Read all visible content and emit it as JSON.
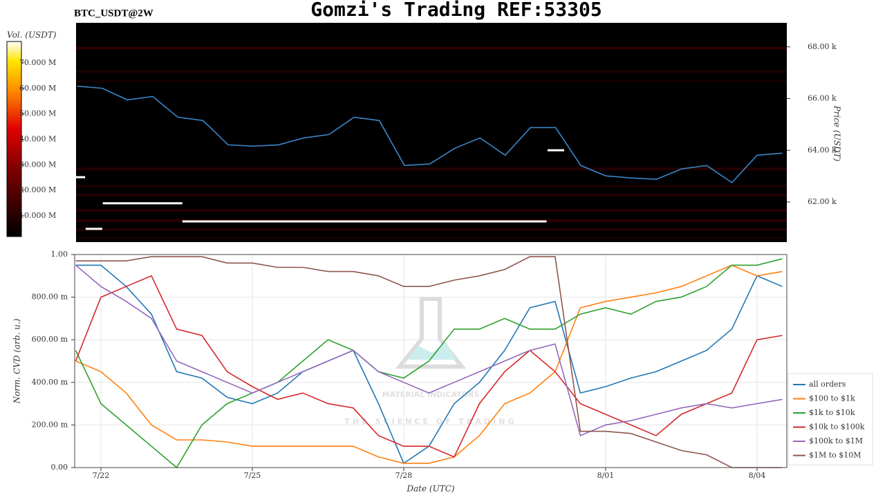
{
  "chart_data": [
    {
      "type": "line",
      "title": "Gomzi's Trading REF:53305",
      "subtitle": "BTC_USDT@2W",
      "ylabel": "Price (USDT)",
      "clabel": "Vol. (USDT)",
      "x": [
        21.5,
        22,
        22.5,
        23,
        23.5,
        24,
        24.5,
        25,
        25.5,
        26,
        26.5,
        27,
        27.5,
        28,
        28.5,
        29,
        29.5,
        30,
        30.5,
        31,
        31.5,
        32,
        32.5,
        33,
        33.5,
        34,
        34.5,
        35,
        35.5
      ],
      "xlim": [
        21.48,
        35.59
      ],
      "ylim": [
        60450,
        68930
      ],
      "yticks": [
        {
          "value": 62000,
          "label": "62.00 k"
        },
        {
          "value": 64000,
          "label": "64.00 k"
        },
        {
          "value": 66000,
          "label": "66.00 k"
        },
        {
          "value": 68000,
          "label": "68.00 k"
        }
      ],
      "clim": [
        1850000,
        78400000
      ],
      "cticks": [
        {
          "value": 10000000,
          "label": "10.000 M"
        },
        {
          "value": 20000000,
          "label": "20.000 M"
        },
        {
          "value": 30000000,
          "label": "30.000 M"
        },
        {
          "value": 40000000,
          "label": "40.000 M"
        },
        {
          "value": 50000000,
          "label": "50.000 M"
        },
        {
          "value": 60000000,
          "label": "60.000 M"
        },
        {
          "value": 70000000,
          "label": "70.000 M"
        }
      ],
      "heatmap": {
        "prices": [
          67950,
          67040,
          66670,
          63280,
          62610,
          62270,
          61680,
          61280,
          60930,
          60610
        ],
        "volumes": [
          12000000,
          8000000,
          6000000,
          10000000,
          8000000,
          9000000,
          10000000,
          12000000,
          9000000,
          6000000
        ]
      },
      "walls": [
        {
          "x": [
            21.48,
            21.66
          ],
          "price": 62960
        },
        {
          "x": [
            22.01,
            23.59
          ],
          "price": 61950
        },
        {
          "x": [
            23.59,
            30.82
          ],
          "price": 61250
        },
        {
          "x": [
            21.67,
            22.0
          ],
          "price": 60960
        },
        {
          "x": [
            30.84,
            31.17
          ],
          "price": 64000
        }
      ],
      "series": [
        {
          "name": "BTC_USDT",
          "color": "#3a86c8",
          "values": [
            66480,
            66400,
            65950,
            66080,
            65280,
            65150,
            64210,
            64160,
            64210,
            64480,
            64610,
            65280,
            65150,
            63410,
            63470,
            64080,
            64480,
            63810,
            64880,
            64880,
            63410,
            63010,
            62930,
            62880,
            63280,
            63410,
            62750,
            63810,
            63890
          ]
        }
      ]
    },
    {
      "type": "line",
      "xlabel": "Date (UTC)",
      "ylabel": "Norm. CVD (arb. u.)",
      "watermark": [
        "MATERIAL INDICATORS",
        "THE SCIENCE OF TRADING"
      ],
      "x": [
        21.5,
        22,
        22.5,
        23,
        23.5,
        24,
        24.5,
        25,
        25.5,
        26,
        26.5,
        27,
        27.5,
        28,
        28.5,
        29,
        29.5,
        30,
        30.5,
        31,
        31.5,
        32,
        32.5,
        33,
        33.5,
        34,
        34.5,
        35,
        35.5
      ],
      "xlim": [
        21.48,
        35.59
      ],
      "xticks": [
        {
          "value": 22,
          "label": "7/22"
        },
        {
          "value": 25,
          "label": "7/25"
        },
        {
          "value": 28,
          "label": "7/28"
        },
        {
          "value": 32,
          "label": "8/01"
        },
        {
          "value": 35,
          "label": "8/04"
        }
      ],
      "ylim": [
        0,
        1
      ],
      "yticks": [
        {
          "value": 0,
          "label": "0.00"
        },
        {
          "value": 0.2,
          "label": "200.00 m"
        },
        {
          "value": 0.4,
          "label": "400.00 m"
        },
        {
          "value": 0.6,
          "label": "600.00 m"
        },
        {
          "value": 0.8,
          "label": "800.00 m"
        },
        {
          "value": 1,
          "label": "1.00"
        }
      ],
      "grid": true,
      "series": [
        {
          "name": "all orders",
          "color": "#1f77b4",
          "values": [
            0.95,
            0.95,
            0.85,
            0.72,
            0.45,
            0.42,
            0.33,
            0.3,
            0.35,
            0.45,
            0.5,
            0.55,
            0.3,
            0.02,
            0.1,
            0.3,
            0.4,
            0.55,
            0.75,
            0.78,
            0.35,
            0.38,
            0.42,
            0.45,
            0.5,
            0.55,
            0.65,
            0.9,
            0.85
          ]
        },
        {
          "name": "$100 to $1k",
          "color": "#ff7f0e",
          "values": [
            0.5,
            0.45,
            0.35,
            0.2,
            0.13,
            0.13,
            0.12,
            0.1,
            0.1,
            0.1,
            0.1,
            0.1,
            0.05,
            0.02,
            0.02,
            0.05,
            0.15,
            0.3,
            0.35,
            0.45,
            0.75,
            0.78,
            0.8,
            0.82,
            0.85,
            0.9,
            0.95,
            0.9,
            0.92
          ]
        },
        {
          "name": "$1k to $10k",
          "color": "#2ca02c",
          "values": [
            0.55,
            0.3,
            0.2,
            0.1,
            0,
            0.2,
            0.3,
            0.35,
            0.4,
            0.5,
            0.6,
            0.55,
            0.45,
            0.42,
            0.5,
            0.65,
            0.65,
            0.7,
            0.65,
            0.65,
            0.72,
            0.75,
            0.72,
            0.78,
            0.8,
            0.85,
            0.95,
            0.95,
            0.98
          ]
        },
        {
          "name": "$10k to $100k",
          "color": "#d62728",
          "values": [
            0.5,
            0.8,
            0.85,
            0.9,
            0.65,
            0.62,
            0.45,
            0.38,
            0.32,
            0.35,
            0.3,
            0.28,
            0.15,
            0.1,
            0.1,
            0.05,
            0.3,
            0.45,
            0.55,
            0.45,
            0.3,
            0.25,
            0.2,
            0.15,
            0.25,
            0.3,
            0.35,
            0.6,
            0.62
          ]
        },
        {
          "name": "$100k to $1M",
          "color": "#9467bd",
          "values": [
            0.95,
            0.85,
            0.78,
            0.7,
            0.5,
            0.45,
            0.4,
            0.35,
            0.4,
            0.45,
            0.5,
            0.55,
            0.45,
            0.4,
            0.35,
            0.4,
            0.45,
            0.5,
            0.55,
            0.58,
            0.15,
            0.2,
            0.22,
            0.25,
            0.28,
            0.3,
            0.28,
            0.3,
            0.32
          ]
        },
        {
          "name": "$1M to $10M",
          "color": "#8c564b",
          "values": [
            0.97,
            0.97,
            0.97,
            0.99,
            0.99,
            0.99,
            0.96,
            0.96,
            0.94,
            0.94,
            0.92,
            0.92,
            0.9,
            0.85,
            0.85,
            0.88,
            0.9,
            0.93,
            0.99,
            0.99,
            0.17,
            0.17,
            0.16,
            0.12,
            0.08,
            0.06,
            0,
            0,
            0
          ]
        }
      ]
    }
  ]
}
